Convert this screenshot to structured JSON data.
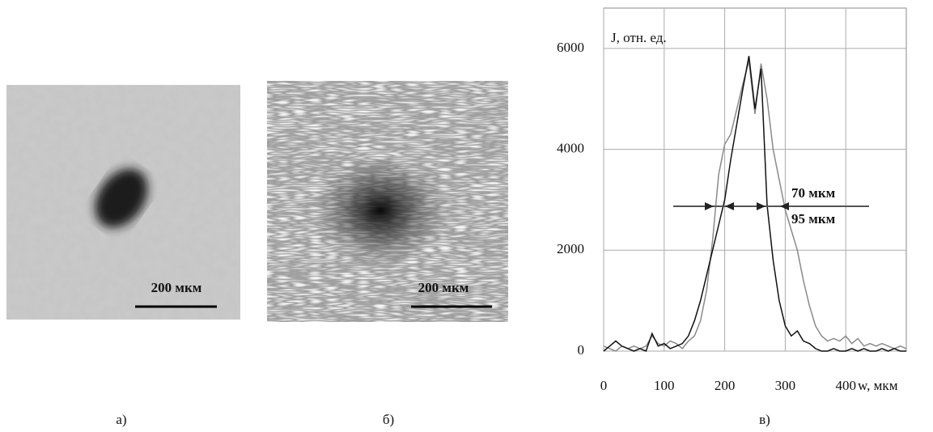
{
  "panels": [
    {
      "label": "а)",
      "scale_bar": "200 мкм"
    },
    {
      "label": "б)",
      "scale_bar": "200 мкм"
    },
    {
      "label": "в)"
    }
  ],
  "chart_data": {
    "type": "line",
    "y_label": "J, отн. ед.",
    "x_label": "w, мкм",
    "annotations": [
      "70 мкм",
      "95 мкм"
    ],
    "x": [
      0,
      10,
      20,
      30,
      40,
      50,
      60,
      70,
      80,
      90,
      100,
      110,
      120,
      130,
      140,
      150,
      160,
      170,
      180,
      190,
      200,
      210,
      220,
      230,
      240,
      250,
      260,
      270,
      280,
      290,
      300,
      310,
      320,
      330,
      340,
      350,
      360,
      370,
      380,
      390,
      400,
      410,
      420,
      430,
      440,
      450,
      460,
      470,
      480,
      490,
      500
    ],
    "series": [
      {
        "color": "#111111",
        "values": [
          0,
          100,
          200,
          100,
          50,
          0,
          50,
          0,
          350,
          100,
          150,
          50,
          100,
          150,
          300,
          600,
          1000,
          1500,
          2000,
          2500,
          3000,
          3800,
          4500,
          5200,
          5850,
          4800,
          5600,
          2900,
          1800,
          1000,
          500,
          300,
          400,
          200,
          150,
          50,
          0,
          0,
          50,
          0,
          0,
          50,
          0,
          50,
          0,
          0,
          50,
          0,
          50,
          0,
          0
        ]
      },
      {
        "color": "#8a8a8a",
        "values": [
          100,
          50,
          0,
          100,
          50,
          100,
          50,
          100,
          300,
          150,
          100,
          200,
          150,
          50,
          200,
          300,
          600,
          1200,
          2200,
          3500,
          4100,
          4300,
          4800,
          5300,
          5750,
          4700,
          5700,
          5000,
          4000,
          3400,
          2800,
          2400,
          2000,
          1400,
          900,
          500,
          300,
          200,
          250,
          200,
          300,
          150,
          250,
          100,
          150,
          100,
          150,
          100,
          50,
          100,
          50
        ]
      }
    ],
    "xlim": [
      0,
      500
    ],
    "xticks": [
      0,
      100,
      200,
      300,
      400
    ],
    "ylim": [
      0,
      6800
    ],
    "yticks": [
      0,
      2000,
      4000,
      6000
    ],
    "grid": true
  }
}
